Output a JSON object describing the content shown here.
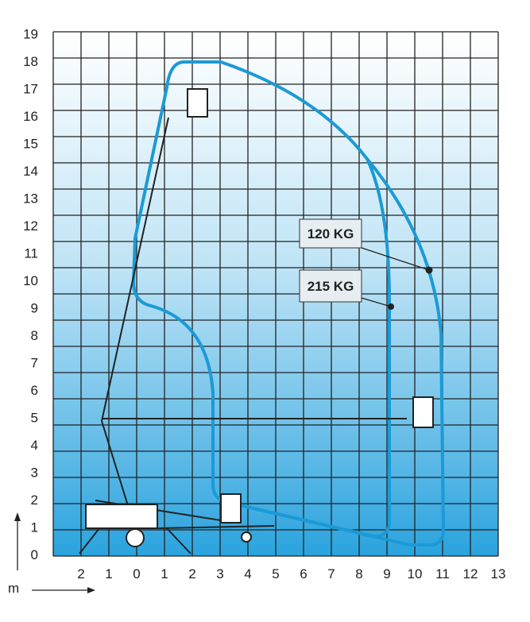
{
  "y_axis": {
    "ticks": [
      "0",
      "1",
      "2",
      "3",
      "4",
      "5",
      "6",
      "7",
      "8",
      "9",
      "10",
      "11",
      "12",
      "13",
      "14",
      "15",
      "16",
      "17",
      "18",
      "19"
    ]
  },
  "x_axis": {
    "ticks": [
      "2",
      "1",
      "0",
      "1",
      "2",
      "3",
      "4",
      "5",
      "6",
      "7",
      "8",
      "9",
      "10",
      "11",
      "12",
      "13"
    ],
    "unit": "m"
  },
  "labels": [
    "120 KG",
    "215 KG"
  ]
}
